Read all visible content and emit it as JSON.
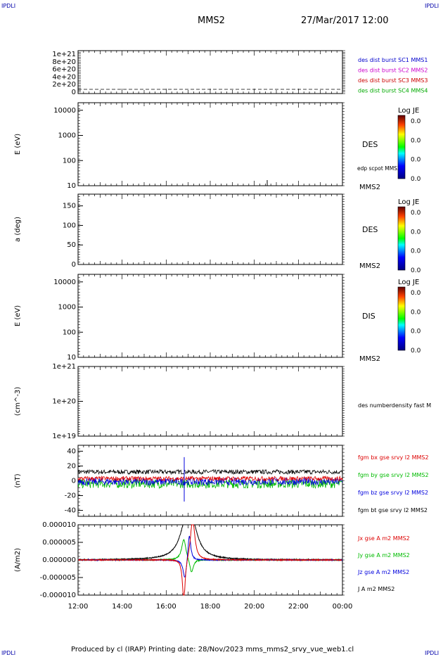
{
  "corner_labels": {
    "tl": "IPDLI",
    "tr": "IPDLI",
    "bl": "IPDLI",
    "br": "IPDLI"
  },
  "header": {
    "title": "MMS2",
    "datetime": "27/Mar/2017 12:00"
  },
  "footer": {
    "text": "Produced by cl (IRAP)   Printing date: 28/Nov/2023   mms_mms2_srvy_vue_web1.cl"
  },
  "colors": {
    "mms1": "#0000cc",
    "mms2": "#cc00cc",
    "mms3": "#cc0000",
    "mms4": "#00aa00",
    "bx": "#dd0000",
    "by": "#00bb00",
    "bz": "#0000dd",
    "bt": "#000000"
  },
  "chart_data": [
    {
      "type": "line",
      "title": "",
      "ylabel": "",
      "yticks": [
        "1e+21",
        "8e+20",
        "6e+20",
        "4e+20",
        "2e+20",
        "0"
      ],
      "ylim": [
        0,
        1e+21
      ],
      "legend_placement": "right",
      "series": [
        {
          "name": "des dist burst SC1 MMS1",
          "color": "#0000cc"
        },
        {
          "name": "des dist burst SC2 MMS2",
          "color": "#cc00cc"
        },
        {
          "name": "des dist burst SC3 MMS3",
          "color": "#cc0000"
        },
        {
          "name": "des dist burst SC4 MMS4",
          "color": "#00aa00"
        }
      ],
      "zero_line": "dashed"
    },
    {
      "type": "heatmap",
      "ylabel": "E (eV)",
      "yscale": "log",
      "ylim": [
        10,
        20000
      ],
      "yticks": [
        "10000",
        "1000",
        "100",
        "10"
      ],
      "side_label": "DES",
      "spacecraft": "MMS2",
      "overlay_label": "edp scpot MMS2",
      "colorbar": {
        "title": "Log JE",
        "ticks": [
          "0.0",
          "0.0",
          "0.0",
          "0.0"
        ]
      }
    },
    {
      "type": "heatmap",
      "ylabel": "a (deg)",
      "ylim": [
        0,
        180
      ],
      "yticks": [
        "150",
        "100",
        "50",
        "0"
      ],
      "side_label": "DES",
      "spacecraft": "MMS2",
      "colorbar": {
        "title": "Log JE",
        "ticks": [
          "0.0",
          "0.0",
          "0.0",
          "0.0"
        ]
      }
    },
    {
      "type": "heatmap",
      "ylabel": "E (eV)",
      "yscale": "log",
      "ylim": [
        10,
        20000
      ],
      "yticks": [
        "10000",
        "1000",
        "100",
        "10"
      ],
      "side_label": "DIS",
      "spacecraft": "MMS2",
      "colorbar": {
        "title": "Log JE",
        "ticks": [
          "0.0",
          "0.0",
          "0.0",
          "0.0"
        ]
      }
    },
    {
      "type": "line",
      "ylabel": "(cm^-3)",
      "yscale": "log",
      "ylim": [
        1e+19,
        1e+21
      ],
      "yticks": [
        "1e+21",
        "1e+20",
        "1e+19"
      ],
      "series": [
        {
          "name": "des numberdensity fast M"
        }
      ]
    },
    {
      "type": "line",
      "ylabel": "(nT)",
      "ylim": [
        -48,
        48
      ],
      "yticks": [
        "40",
        "20",
        "0",
        "-20",
        "-40"
      ],
      "series": [
        {
          "name": "fgm bx gse srvy l2 MMS2",
          "color": "#dd0000",
          "mean": 3,
          "noise": 3
        },
        {
          "name": "fgm by gse srvy l2 MMS2",
          "color": "#00bb00",
          "mean": -4,
          "noise": 6
        },
        {
          "name": "fgm bz gse srvy l2 MMS2",
          "color": "#0000dd",
          "mean": -1,
          "noise": 5
        },
        {
          "name": "fgm bt gse srvy l2 MMS2",
          "color": "#000000",
          "mean": 12,
          "noise": 3
        }
      ]
    },
    {
      "type": "line",
      "ylabel": "(A/m2)",
      "ylim": [
        -1e-05,
        1e-05
      ],
      "yticks": [
        "0.000010",
        "0.000005",
        "0.000000",
        "-0.000005",
        "-0.000010"
      ],
      "series": [
        {
          "name": "Jx gse A m2 MMS2",
          "color": "#dd0000"
        },
        {
          "name": "Jy gse A m2 MMS2",
          "color": "#00bb00"
        },
        {
          "name": "Jz gse A m2 MMS2",
          "color": "#0000dd"
        },
        {
          "name": "J A m2 MMS2",
          "color": "#000000"
        }
      ]
    }
  ],
  "xaxis": {
    "ticks": [
      "12:00",
      "14:00",
      "16:00",
      "18:00",
      "20:00",
      "22:00",
      "00:00"
    ],
    "range_hours": [
      12,
      24
    ]
  }
}
